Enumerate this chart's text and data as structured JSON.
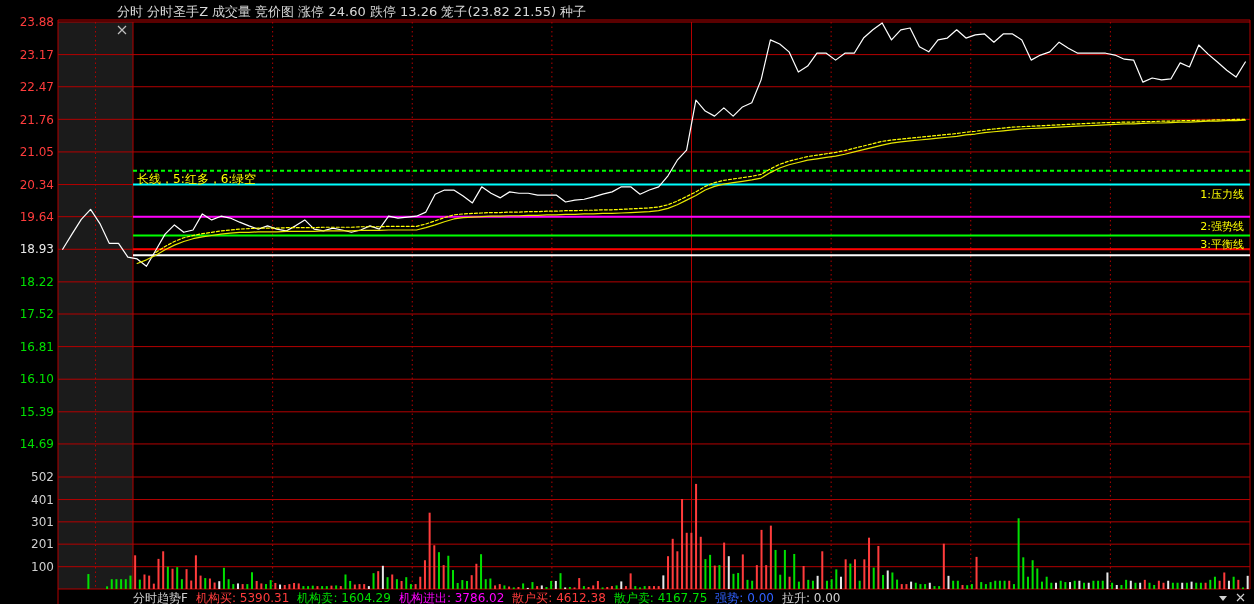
{
  "chart_data": [
    {
      "type": "line",
      "title": "分时 分时圣手Z 成交量 竞价图 涨停 24.60 跌停 13.26 笼子(23.82 21.55) 种子",
      "categories": [
        null,
        null,
        null,
        null,
        null,
        null,
        null,
        null,
        null,
        null,
        null,
        null,
        null,
        null,
        null,
        null,
        null,
        null,
        null,
        null,
        null,
        null,
        null,
        null,
        null,
        null,
        null,
        null,
        null,
        null,
        null,
        null,
        null,
        null,
        null,
        null,
        null,
        null,
        null,
        null,
        null,
        null,
        null,
        null,
        null,
        null,
        null,
        null,
        null,
        null,
        null,
        null,
        null,
        null,
        null,
        null,
        null,
        null,
        null,
        null,
        null,
        null,
        null,
        null,
        null,
        null,
        null,
        null,
        null,
        null,
        null,
        null,
        null,
        null,
        null,
        null,
        null,
        null,
        null,
        null,
        null,
        null,
        null,
        null,
        null,
        null,
        null,
        null,
        null,
        null,
        null,
        null,
        null,
        null,
        null,
        null,
        null,
        null,
        null,
        null,
        null,
        null,
        null,
        null,
        null,
        null,
        null,
        null,
        null,
        null,
        null,
        null,
        null,
        null,
        null,
        null,
        null,
        null,
        null,
        null,
        null,
        null,
        null,
        null,
        null,
        null,
        null,
        null
      ],
      "series": [
        {
          "color": "#ffffff",
          "values": [
            18.93,
            19.26,
            19.58,
            19.8,
            19.49,
            19.06,
            19.06,
            18.76,
            18.72,
            18.56,
            18.91,
            19.26,
            19.46,
            19.3,
            19.35,
            19.7,
            19.57,
            19.65,
            19.61,
            19.52,
            19.44,
            19.37,
            19.44,
            19.37,
            19.33,
            19.44,
            19.57,
            19.37,
            19.33,
            19.39,
            19.35,
            19.3,
            19.35,
            19.44,
            19.37,
            19.65,
            19.61,
            19.63,
            19.65,
            19.74,
            20.13,
            20.22,
            20.22,
            20.09,
            19.94,
            20.29,
            20.15,
            20.05,
            20.18,
            20.15,
            20.15,
            20.11,
            20.11,
            20.11,
            19.96,
            20.0,
            20.02,
            20.07,
            20.13,
            20.18,
            20.29,
            20.29,
            20.13,
            20.22,
            20.29,
            20.53,
            20.87,
            21.09,
            22.18,
            21.94,
            21.83,
            22.01,
            21.83,
            22.03,
            22.12,
            22.62,
            23.49,
            23.4,
            23.23,
            22.79,
            22.92,
            23.2,
            23.2,
            23.05,
            23.2,
            23.2,
            23.53,
            23.71,
            23.86,
            23.49,
            23.71,
            23.75,
            23.34,
            23.23,
            23.49,
            23.53,
            23.71,
            23.53,
            23.6,
            23.62,
            23.44,
            23.62,
            23.62,
            23.49,
            23.05,
            23.16,
            23.23,
            23.44,
            23.31,
            23.2,
            23.2,
            23.2,
            23.2,
            23.16,
            23.07,
            23.05,
            22.57,
            22.66,
            22.62,
            22.64,
            22.99,
            22.9,
            23.38,
            23.18,
            23.01,
            22.83,
            22.68,
            23.01
          ]
        },
        {
          "color": "#e6e600",
          "values": [
            null,
            null,
            null,
            null,
            null,
            null,
            null,
            null,
            18.62,
            18.7,
            18.8,
            18.92,
            19.02,
            19.1,
            19.16,
            19.2,
            19.23,
            19.26,
            19.28,
            19.3,
            19.3,
            19.31,
            19.31,
            19.31,
            19.32,
            19.32,
            19.32,
            19.32,
            19.33,
            19.33,
            19.33,
            19.33,
            19.34,
            19.34,
            19.34,
            19.35,
            19.35,
            19.35,
            19.35,
            19.4,
            19.46,
            19.53,
            19.59,
            19.62,
            19.63,
            19.64,
            19.65,
            19.65,
            19.66,
            19.66,
            19.67,
            19.67,
            19.68,
            19.68,
            19.69,
            19.69,
            19.7,
            19.7,
            19.71,
            19.71,
            19.72,
            19.73,
            19.74,
            19.75,
            19.77,
            19.82,
            19.9,
            20.0,
            20.1,
            20.22,
            20.3,
            20.35,
            20.38,
            20.41,
            20.44,
            20.48,
            20.6,
            20.7,
            20.77,
            20.82,
            20.87,
            20.9,
            20.93,
            20.96,
            21.0,
            21.05,
            21.1,
            21.15,
            21.2,
            21.24,
            21.27,
            21.29,
            21.31,
            21.33,
            21.35,
            21.37,
            21.39,
            21.42,
            21.44,
            21.47,
            21.49,
            21.51,
            21.53,
            21.55,
            21.56,
            21.57,
            21.58,
            21.59,
            21.6,
            21.61,
            21.62,
            21.63,
            21.64,
            21.65,
            21.66,
            21.66,
            21.67,
            21.68,
            21.68,
            21.69,
            21.7,
            21.7,
            21.71,
            21.72,
            21.72,
            21.73,
            21.73,
            21.74
          ]
        },
        {
          "color": "#ffff00",
          "line_style": "dashed",
          "values": [
            null,
            null,
            null,
            null,
            null,
            null,
            null,
            null,
            null,
            null,
            18.86,
            18.99,
            19.1,
            19.18,
            19.23,
            19.27,
            19.3,
            19.33,
            19.35,
            19.37,
            19.38,
            19.39,
            19.39,
            19.39,
            19.4,
            19.4,
            19.4,
            19.4,
            19.41,
            19.41,
            19.41,
            19.41,
            19.42,
            19.42,
            19.42,
            19.43,
            19.43,
            19.43,
            19.43,
            19.48,
            19.55,
            19.62,
            19.68,
            19.7,
            19.71,
            19.72,
            19.73,
            19.73,
            19.74,
            19.74,
            19.75,
            19.75,
            19.76,
            19.76,
            19.77,
            19.77,
            19.78,
            19.78,
            19.79,
            19.79,
            19.8,
            19.81,
            19.82,
            19.83,
            19.85,
            19.9,
            19.98,
            20.08,
            20.18,
            20.3,
            20.38,
            20.43,
            20.46,
            20.49,
            20.52,
            20.56,
            20.68,
            20.78,
            20.85,
            20.9,
            20.95,
            20.98,
            21.01,
            21.04,
            21.08,
            21.13,
            21.18,
            21.23,
            21.28,
            21.31,
            21.33,
            21.35,
            21.37,
            21.39,
            21.41,
            21.43,
            21.45,
            21.48,
            21.5,
            21.53,
            21.55,
            21.57,
            21.59,
            21.6,
            21.61,
            21.62,
            21.63,
            21.64,
            21.65,
            21.66,
            21.67,
            21.68,
            21.69,
            21.69,
            21.7,
            21.7,
            21.71,
            21.71,
            21.72,
            21.72,
            21.73,
            21.73,
            21.74,
            21.74,
            21.75,
            21.75,
            21.76,
            21.76
          ]
        }
      ],
      "ylim": [
        13.97,
        23.88
      ],
      "yticks": [
        23.88,
        23.17,
        22.47,
        21.76,
        21.05,
        20.34,
        19.64,
        18.93,
        18.22,
        17.52,
        16.81,
        {
          "value": 16.1,
          "label": "16.10"
        },
        15.39,
        14.69
      ],
      "grid": true,
      "ref_lines": [
        {
          "axis": "y",
          "value": 18.93,
          "color": "#ff0000"
        },
        {
          "axis": "y",
          "value": 20.64,
          "color": "#00ff00",
          "line_style": "dashed"
        },
        {
          "axis": "y",
          "value": 20.34,
          "color": "#00ffff",
          "label": "1:压力线"
        },
        {
          "axis": "y",
          "value": 19.64,
          "color": "#ff00ff",
          "label": "2:强势线"
        },
        {
          "axis": "y",
          "value": 19.23,
          "color": "#00ff00",
          "label": "3:平衡线"
        },
        {
          "axis": "y",
          "value": 18.8,
          "color": "#ffffff"
        }
      ],
      "annotations": [
        "长线，5:红多，6:绿空"
      ]
    },
    {
      "type": "bar",
      "categories": [
        null,
        null,
        null,
        null,
        null,
        null,
        null,
        null,
        null,
        null,
        null,
        null,
        null,
        null,
        null,
        null,
        null,
        null,
        null,
        null,
        null,
        null,
        null,
        null,
        null,
        null,
        null,
        null,
        null,
        null,
        null,
        null,
        null,
        null,
        null,
        null,
        null,
        null,
        null,
        null,
        null,
        null,
        null,
        null,
        null,
        null,
        null,
        null,
        null,
        null,
        null,
        null,
        null,
        null,
        null,
        null,
        null,
        null,
        null,
        null,
        null,
        null,
        null,
        null,
        null,
        null,
        null,
        null,
        null,
        null,
        null,
        null,
        null,
        null,
        null,
        null,
        null,
        null,
        null,
        null,
        null,
        null,
        null,
        null,
        null,
        null,
        null,
        null,
        null,
        null,
        null,
        null,
        null,
        null,
        null,
        null,
        null,
        null,
        null,
        null,
        null,
        null,
        null,
        null,
        null,
        null,
        null,
        null,
        null,
        null,
        null,
        null,
        null,
        null,
        null,
        null,
        null,
        null,
        null,
        null,
        null,
        null,
        null,
        null,
        null,
        null,
        null,
        null,
        null,
        null,
        null,
        null,
        null,
        null,
        null,
        null,
        null,
        null,
        null,
        null,
        null,
        null,
        null,
        null,
        null,
        null,
        null,
        null,
        null,
        null,
        null,
        null,
        null,
        null,
        null,
        null,
        null,
        null,
        null,
        null,
        null,
        null,
        null,
        null,
        null,
        null,
        null,
        null,
        null,
        null,
        null,
        null,
        null,
        null,
        null,
        null,
        null,
        null,
        null,
        null,
        null,
        null,
        null,
        null,
        null,
        null,
        null,
        null,
        null,
        null,
        null,
        null,
        null,
        null,
        null,
        null,
        null,
        null,
        null,
        null,
        null,
        null,
        null,
        null,
        null,
        null,
        null,
        null,
        null,
        null,
        null,
        null,
        null,
        null,
        null,
        null,
        null,
        null,
        null,
        null,
        null,
        null,
        null,
        null,
        null,
        null,
        null,
        null,
        null,
        null,
        null,
        null,
        null,
        null,
        null,
        null,
        null,
        null,
        null,
        null,
        null,
        null,
        null,
        null,
        null,
        null,
        null,
        null,
        null,
        null,
        null,
        null,
        null,
        null,
        null
      ],
      "values": [
        null,
        null,
        null,
        null,
        null,
        null,
        67,
        null,
        null,
        null,
        12,
        44,
        44,
        44,
        44,
        60,
        151,
        42,
        65,
        60,
        24,
        135,
        169,
        100,
        91,
        98,
        44,
        89,
        38,
        151,
        60,
        49,
        47,
        29,
        35,
        95,
        44,
        22,
        25,
        22,
        22,
        75,
        36,
        25,
        22,
        40,
        27,
        20,
        18,
        22,
        27,
        25,
        13,
        13,
        15,
        13,
        13,
        13,
        15,
        16,
        13,
        65,
        36,
        20,
        22,
        22,
        13,
        71,
        80,
        104,
        53,
        65,
        44,
        36,
        53,
        22,
        22,
        55,
        129,
        342,
        196,
        165,
        107,
        149,
        85,
        27,
        40,
        36,
        62,
        113,
        156,
        44,
        47,
        16,
        22,
        16,
        11,
        7,
        9,
        25,
        5,
        31,
        13,
        16,
        9,
        36,
        36,
        71,
        7,
        9,
        7,
        49,
        13,
        9,
        16,
        36,
        7,
        9,
        13,
        16,
        34,
        13,
        70,
        13,
        7,
        13,
        13,
        13,
        13,
        61,
        147,
        225,
        169,
        403,
        252,
        252,
        471,
        234,
        134,
        153,
        105,
        107,
        208,
        147,
        68,
        72,
        155,
        41,
        37,
        107,
        265,
        107,
        284,
        175,
        64,
        175,
        55,
        157,
        33,
        103,
        41,
        37,
        59,
        169,
        37,
        44,
        88,
        55,
        133,
        114,
        133,
        37,
        133,
        230,
        96,
        193,
        63,
        83,
        74,
        42,
        22,
        22,
        33,
        28,
        22,
        22,
        28,
        13,
        13,
        203,
        59,
        37,
        37,
        18,
        17,
        22,
        144,
        31,
        22,
        31,
        37,
        37,
        37,
        37,
        22,
        317,
        142,
        55,
        129,
        92,
        33,
        55,
        28,
        28,
        37,
        31,
        31,
        37,
        37,
        28,
        28,
        37,
        37,
        37,
        74,
        28,
        18,
        18,
        41,
        37,
        28,
        28,
        41,
        28,
        18,
        37,
        28,
        37,
        28,
        28,
        28,
        28,
        33,
        28,
        28,
        28,
        41,
        55,
        37,
        74,
        37,
        55,
        41,
        7,
        59
      ],
      "colors": [
        null,
        null,
        null,
        null,
        null,
        null,
        "#00e000",
        null,
        null,
        null,
        "#00e000",
        "#00e000",
        "#00e000",
        "#00e000",
        "#00e000",
        "#00e000",
        "#ff3c3c",
        "#00e000",
        "#ff3c3c",
        "#ff3c3c",
        "#ff3c3c",
        "#ff3c3c",
        "#ff3c3c",
        "#00e000",
        "#ff3c3c",
        "#00e000",
        "#00e000",
        "#ff3c3c",
        "#ff3c3c",
        "#ff3c3c",
        "#ff3c3c",
        "#00e000",
        "#ff3c3c",
        "#ff3c3c",
        "#e8e8e8",
        "#00e000",
        "#00e000",
        "#00e000",
        "#e8e8e8",
        "#ff3c3c",
        "#00e000",
        "#00e000",
        "#ff3c3c",
        "#ff3c3c",
        "#00e000",
        "#00e000",
        "#ff3c3c",
        "#e8e8e8",
        "#ff3c3c",
        "#ff3c3c",
        "#ff3c3c",
        "#ff3c3c",
        "#00e000",
        "#00e000",
        "#00e000",
        "#ff3c3c",
        "#00e000",
        "#00e000",
        "#ff3c3c",
        "#00e000",
        "#ff3c3c",
        "#00e000",
        "#00e000",
        "#ff3c3c",
        "#ff3c3c",
        "#ff3c3c",
        "#e8e8e8",
        "#00e000",
        "#ff3c3c",
        "#e8e8e8",
        "#00e000",
        "#ff3c3c",
        "#00e000",
        "#ff3c3c",
        "#00e000",
        "#00e000",
        "#ff3c3c",
        "#ff3c3c",
        "#ff3c3c",
        "#ff3c3c",
        "#ff3c3c",
        "#00e000",
        "#ff3c3c",
        "#00e000",
        "#00e000",
        "#00e000",
        "#00e000",
        "#00e000",
        "#ff3c3c",
        "#ff3c3c",
        "#00e000",
        "#00e000",
        "#00e000",
        "#ff3c3c",
        "#ff3c3c",
        "#00e000",
        "#ff3c3c",
        "#00e000",
        "#ff3c3c",
        "#00e000",
        "#e8e8e8",
        "#00e000",
        "#ff3c3c",
        "#e8e8e8",
        "#00e000",
        "#00e000",
        "#e8e8e8",
        "#00e000",
        "#e8e8e8",
        "#00e000",
        "#ff3c3c",
        "#ff3c3c",
        "#00e000",
        "#ff3c3c",
        "#ff3c3c",
        "#ff3c3c",
        "#00e000",
        "#ff3c3c",
        "#ff3c3c",
        "#00e000",
        "#e8e8e8",
        "#ff3c3c",
        "#ff3c3c",
        "#00e000",
        "#00e000",
        "#00e000",
        "#ff3c3c",
        "#ff3c3c",
        "#ff3c3c",
        "#e8e8e8",
        "#ff3c3c",
        "#ff3c3c",
        "#ff3c3c",
        "#ff3c3c",
        "#ff3c3c",
        "#ff3c3c",
        "#ff3c3c",
        "#ff3c3c",
        "#00e000",
        "#00e000",
        "#ff3c3c",
        "#00e000",
        "#ff3c3c",
        "#e8e8e8",
        "#00e000",
        "#00e000",
        "#ff3c3c",
        "#00e000",
        "#00e000",
        "#ff3c3c",
        "#ff3c3c",
        "#ff3c3c",
        "#ff3c3c",
        "#00e000",
        "#00e000",
        "#00e000",
        "#ff3c3c",
        "#00e000",
        "#00e000",
        "#ff3c3c",
        "#00e000",
        "#00e000",
        "#e8e8e8",
        "#ff3c3c",
        "#00e000",
        "#00e000",
        "#00e000",
        "#e8e8e8",
        "#ff3c3c",
        "#00e000",
        "#ff3c3c",
        "#00e000",
        "#ff3c3c",
        "#ff3c3c",
        "#00e000",
        "#ff3c3c",
        "#00e000",
        "#e8e8e8",
        "#00e000",
        "#00e000",
        "#ff3c3c",
        "#ff3c3c",
        "#e8e8e8",
        "#00e000",
        "#00e000",
        "#00e000",
        "#e8e8e8",
        "#00e000",
        "#00e000",
        "#ff3c3c",
        "#e8e8e8",
        "#00e000",
        "#00e000",
        "#ff3c3c",
        "#00e000",
        "#00e000",
        "#ff3c3c",
        "#00e000",
        "#00e000",
        "#00e000",
        "#00e000",
        "#00e000",
        "#00e000",
        "#ff3c3c",
        "#00e000",
        "#00e000",
        "#00e000",
        "#00e000",
        "#00e000",
        "#00e000",
        "#00e000",
        "#00e000",
        "#00e000",
        "#e8e8e8",
        "#00e000",
        "#00e000",
        "#e8e8e8",
        "#00e000",
        "#e8e8e8",
        "#00e000",
        "#e8e8e8",
        "#00e000",
        "#00e000",
        "#00e000",
        "#e8e8e8",
        "#00e000",
        "#e8e8e8",
        "#00e000",
        "#00e000",
        "#e8e8e8",
        "#00e000",
        "#e8e8e8",
        "#ff3c3c",
        "#00e000",
        "#00e000",
        "#ff3c3c",
        "#ff3c3c",
        "#e8e8e8",
        "#00e000",
        "#00e000",
        "#e8e8e8",
        "#00e000",
        "#e8e8e8",
        "#00e000",
        "#00e000",
        "#ff3c3c",
        "#00e000",
        "#00e000",
        "#ff3c3c",
        "#ff3c3c",
        "#e8e8e8",
        "#00e000",
        "#ff3c3c",
        "#00e000",
        "#e8e8e8"
      ],
      "ylim": [
        0,
        502
      ],
      "yticks": [
        100,
        201,
        301,
        401,
        502
      ],
      "grid": true,
      "annotations": [
        "分时趋势F",
        "机构买: 5390.31",
        "机构卖: 1604.29",
        "机构进出: 3786.02",
        "散户买: 4612.38",
        "散户卖: 4167.75",
        "强势: 0.00",
        "拉升: 0.00"
      ]
    }
  ]
}
